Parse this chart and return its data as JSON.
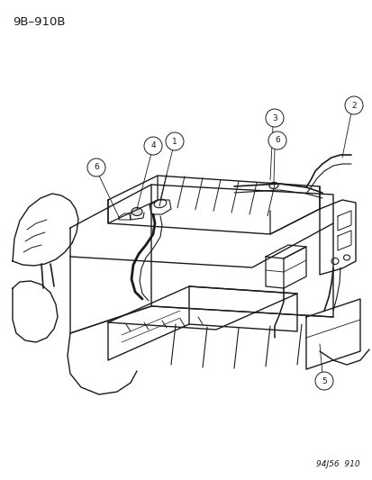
{
  "title": "9B–910B",
  "footer": "94J56  910",
  "bg_color": "#ffffff",
  "line_color": "#1a1a1a",
  "title_fontsize": 9.5,
  "footer_fontsize": 6.5,
  "fig_width": 4.14,
  "fig_height": 5.33
}
